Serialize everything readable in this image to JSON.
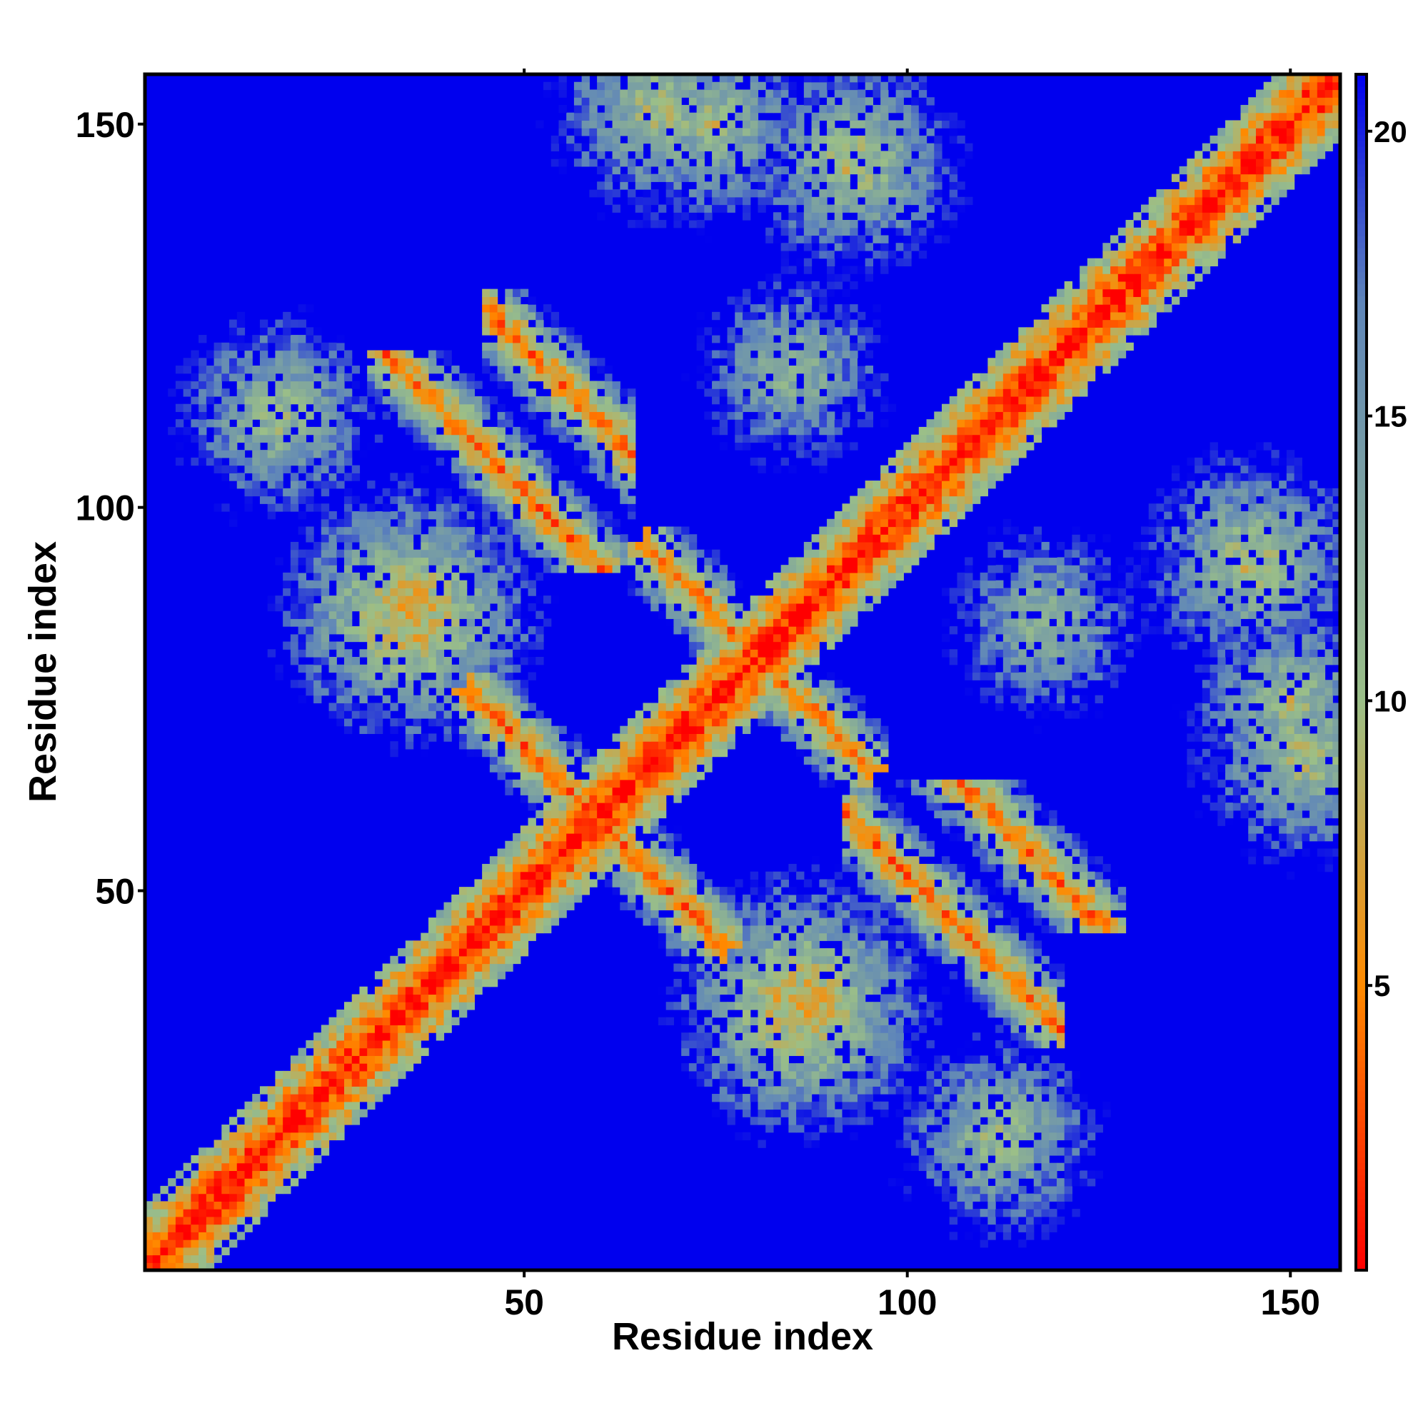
{
  "chart_data": {
    "type": "heatmap",
    "title": "",
    "xlabel": "Residue index",
    "ylabel": "Residue index",
    "n_residues": 156,
    "xlim": [
      1,
      156
    ],
    "ylim": [
      1,
      156
    ],
    "x_ticks": [
      50,
      100,
      150
    ],
    "y_ticks": [
      50,
      100,
      150
    ],
    "colorbar": {
      "range": [
        0,
        21
      ],
      "ticks": [
        5,
        10,
        15,
        20
      ],
      "colors": [
        "#ff0000",
        "#ff8a00",
        "#9bbf88",
        "#5f86b9",
        "#0000ee"
      ]
    },
    "saturation_value": 21,
    "features": {
      "diagonal": "distance rises from ~0 at i=j to ~12 at |i-j|=8",
      "contact_bands_antiparallel": [
        {
          "i_start": 43,
          "i_end": 76,
          "sum": 119
        },
        {
          "i_start": 66,
          "i_end": 95,
          "sum": 161
        },
        {
          "i_start": 45,
          "i_end": 64,
          "sum": 171
        },
        {
          "i_start": 92,
          "i_end": 120,
          "sum": 152
        }
      ],
      "contact_patches": [
        {
          "x": 35,
          "y": 86,
          "value": 6
        },
        {
          "x": 85,
          "y": 35,
          "value": 6
        },
        {
          "x": 18,
          "y": 112,
          "value": 10
        },
        {
          "x": 112,
          "y": 18,
          "value": 10
        },
        {
          "x": 68,
          "y": 152,
          "value": 9
        },
        {
          "x": 152,
          "y": 68,
          "value": 9
        },
        {
          "x": 145,
          "y": 93,
          "value": 9
        },
        {
          "x": 93,
          "y": 145,
          "value": 9
        },
        {
          "x": 150,
          "y": 75,
          "value": 10
        },
        {
          "x": 75,
          "y": 150,
          "value": 10
        },
        {
          "x": 118,
          "y": 85,
          "value": 11
        },
        {
          "x": 85,
          "y": 118,
          "value": 11
        }
      ]
    }
  }
}
